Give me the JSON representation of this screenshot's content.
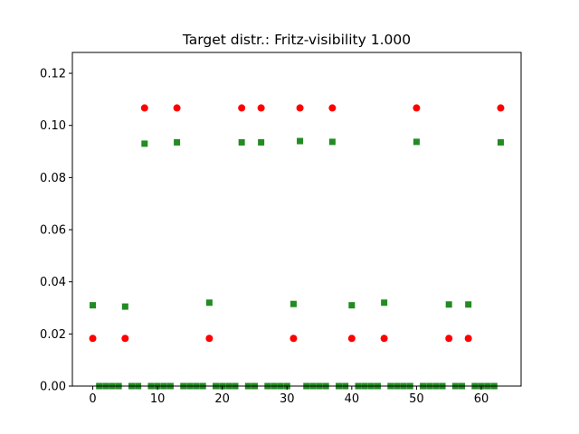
{
  "chart_data": {
    "type": "scatter",
    "title": "Target distr.: Fritz-visibility 1.000",
    "xlabel": "",
    "ylabel": "",
    "xlim": [
      -3.15,
      66.15
    ],
    "ylim": [
      0,
      0.128
    ],
    "grid": false,
    "xticks": [
      0,
      10,
      20,
      30,
      40,
      50,
      60
    ],
    "xtick_labels": [
      "0",
      "10",
      "20",
      "30",
      "40",
      "50",
      "60"
    ],
    "yticks": [
      0,
      0.02,
      0.04,
      0.06,
      0.08,
      0.1,
      0.12
    ],
    "ytick_labels": [
      "0.00",
      "0.02",
      "0.04",
      "0.06",
      "0.08",
      "0.10",
      "0.12"
    ],
    "series": [
      {
        "marker": "circle",
        "color": "#ff0000",
        "x": [
          0,
          5,
          8,
          13,
          18,
          23,
          26,
          31,
          32,
          37,
          40,
          45,
          50,
          55,
          58,
          63
        ],
        "y": [
          0.0183,
          0.0183,
          0.1067,
          0.1067,
          0.0183,
          0.1067,
          0.1067,
          0.0183,
          0.1067,
          0.1067,
          0.0183,
          0.0183,
          0.1067,
          0.0183,
          0.0183,
          0.1067
        ]
      },
      {
        "marker": "square",
        "color": "#228b22",
        "x": [
          0,
          1,
          2,
          3,
          4,
          5,
          6,
          7,
          8,
          9,
          10,
          11,
          12,
          13,
          14,
          15,
          16,
          17,
          18,
          19,
          20,
          21,
          22,
          23,
          24,
          25,
          26,
          27,
          28,
          29,
          30,
          31,
          32,
          33,
          34,
          35,
          36,
          37,
          38,
          39,
          40,
          41,
          42,
          43,
          44,
          45,
          46,
          47,
          48,
          49,
          50,
          51,
          52,
          53,
          54,
          55,
          56,
          57,
          58,
          59,
          60,
          61,
          62,
          63
        ],
        "y": [
          0.031,
          0,
          0,
          0,
          0,
          0.0305,
          0,
          0,
          0.093,
          0,
          0,
          0,
          0,
          0.0935,
          0,
          0,
          0,
          0,
          0.032,
          0,
          0,
          0,
          0,
          0.0935,
          0,
          0,
          0.0935,
          0,
          0,
          0,
          0,
          0.0315,
          0.094,
          0,
          0,
          0,
          0,
          0.0937,
          0,
          0,
          0.031,
          0,
          0,
          0,
          0,
          0.032,
          0,
          0,
          0,
          0,
          0.0937,
          0,
          0,
          0,
          0,
          0.0313,
          0,
          0,
          0.0313,
          0,
          0,
          0,
          0,
          0.0935
        ]
      }
    ]
  }
}
